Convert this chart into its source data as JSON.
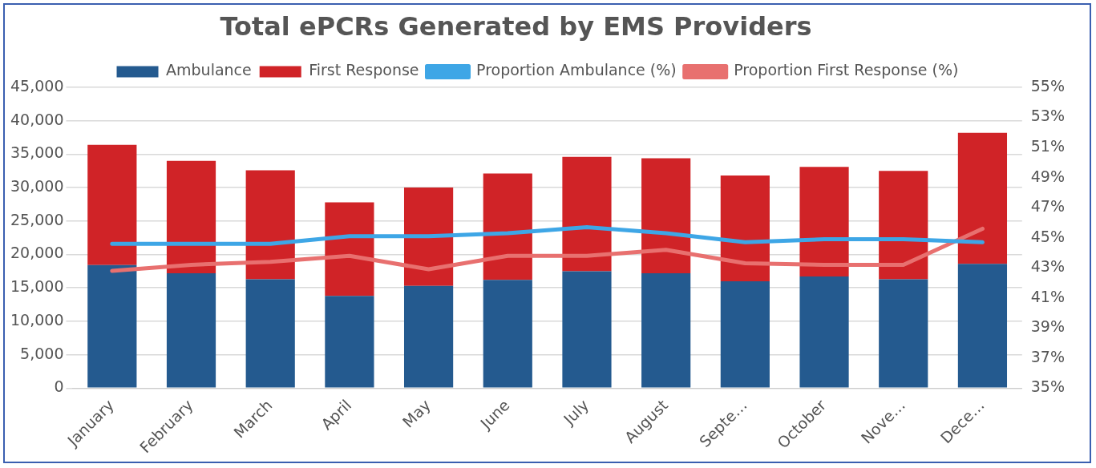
{
  "chart_data": {
    "type": "bar",
    "title": "Total ePCRs Generated by EMS Providers",
    "categories": [
      "January",
      "February",
      "March",
      "April",
      "May",
      "June",
      "July",
      "August",
      "Septe…",
      "October",
      "Nove…",
      "Dece…"
    ],
    "stacked": true,
    "series": [
      {
        "name": "Ambulance",
        "color": "#245a8f",
        "values": [
          18400,
          17200,
          16300,
          13800,
          15300,
          16200,
          17500,
          17200,
          16000,
          16700,
          16300,
          18600
        ]
      },
      {
        "name": "First Response",
        "color": "#d02327",
        "values": [
          18000,
          16800,
          16300,
          14000,
          14700,
          15900,
          17100,
          17200,
          15800,
          16400,
          16200,
          19600
        ]
      },
      {
        "name": "Proportion Ambulance (%)",
        "type": "line",
        "axis": "y2",
        "color": "#3ea6e6",
        "values": [
          44.6,
          44.6,
          44.6,
          45.1,
          45.1,
          45.3,
          45.7,
          45.3,
          44.7,
          44.9,
          44.9,
          44.7
        ]
      },
      {
        "name": "Proportion First Response (%)",
        "type": "line",
        "axis": "y2",
        "color": "#e8706f",
        "values": [
          42.8,
          43.2,
          43.4,
          43.8,
          42.9,
          43.8,
          43.8,
          44.2,
          43.3,
          43.2,
          43.2,
          45.6
        ]
      }
    ],
    "ylim": [
      0,
      45000
    ],
    "yticks": [
      {
        "value": 0,
        "label": "0"
      },
      {
        "value": 5000,
        "label": "5,000"
      },
      {
        "value": 10000,
        "label": "10,000"
      },
      {
        "value": 15000,
        "label": "15,000"
      },
      {
        "value": 20000,
        "label": "20,000"
      },
      {
        "value": 25000,
        "label": "25,000"
      },
      {
        "value": 30000,
        "label": "30,000"
      },
      {
        "value": 35000,
        "label": "35,000"
      },
      {
        "value": 40000,
        "label": "40,000"
      },
      {
        "value": 45000,
        "label": "45,000"
      }
    ],
    "y2lim": [
      35,
      55
    ],
    "y2ticks": [
      {
        "value": 35,
        "label": "35%"
      },
      {
        "value": 37,
        "label": "37%"
      },
      {
        "value": 39,
        "label": "39%"
      },
      {
        "value": 41,
        "label": "41%"
      },
      {
        "value": 43,
        "label": "43%"
      },
      {
        "value": 45,
        "label": "45%"
      },
      {
        "value": 47,
        "label": "47%"
      },
      {
        "value": 49,
        "label": "49%"
      },
      {
        "value": 51,
        "label": "51%"
      },
      {
        "value": 53,
        "label": "53%"
      },
      {
        "value": 55,
        "label": "55%"
      }
    ],
    "grid": "y",
    "legend": "top",
    "marker": "none"
  }
}
